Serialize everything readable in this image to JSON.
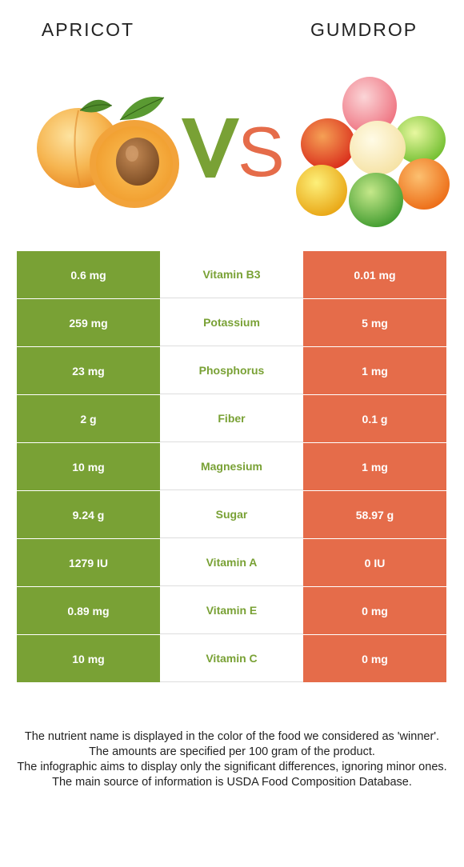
{
  "header": {
    "left_food": "APRICOT",
    "right_food": "GUMDROP",
    "vs_label": "VS"
  },
  "colors": {
    "winner_left": "#79a135",
    "winner_right": "#e56c4a"
  },
  "rows": [
    {
      "left": "0.6 mg",
      "nutrient": "Vitamin B3",
      "right": "0.01 mg"
    },
    {
      "left": "259 mg",
      "nutrient": "Potassium",
      "right": "5 mg"
    },
    {
      "left": "23 mg",
      "nutrient": "Phosphorus",
      "right": "1 mg"
    },
    {
      "left": "2 g",
      "nutrient": "Fiber",
      "right": "0.1 g"
    },
    {
      "left": "10 mg",
      "nutrient": "Magnesium",
      "right": "1 mg"
    },
    {
      "left": "9.24 g",
      "nutrient": "Sugar",
      "right": "58.97 g"
    },
    {
      "left": "1279 IU",
      "nutrient": "Vitamin A",
      "right": "0 IU"
    },
    {
      "left": "0.89 mg",
      "nutrient": "Vitamin E",
      "right": "0 mg"
    },
    {
      "left": "10 mg",
      "nutrient": "Vitamin C",
      "right": "0 mg"
    }
  ],
  "footnote": {
    "line1": "The nutrient name is displayed in the color of the food we considered as 'winner'.",
    "line2": "The amounts are specified per 100 gram of the product.",
    "line3": "The infographic aims to display only the significant differences, ignoring minor ones.",
    "line4": "The main source of information is USDA Food Composition Database."
  }
}
